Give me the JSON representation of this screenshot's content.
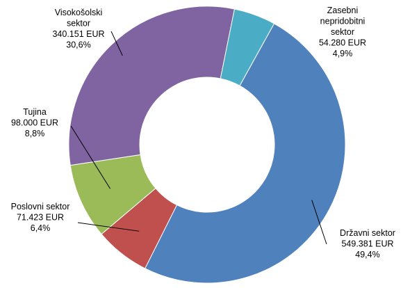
{
  "chart_data": {
    "type": "pie",
    "variant": "donut",
    "title": "",
    "legend": "none",
    "slices": [
      {
        "name_lines": [
          "Državni sektor"
        ],
        "value": "549.381 EUR",
        "percent": "49,4%",
        "amount": 549381,
        "share": 49.4,
        "color": "#4F81BD"
      },
      {
        "name_lines": [
          "Poslovni sektor"
        ],
        "value": "71.423 EUR",
        "percent": "6,4%",
        "amount": 71423,
        "share": 6.4,
        "color": "#C0504D"
      },
      {
        "name_lines": [
          "Tujina"
        ],
        "value": "98.000 EUR",
        "percent": "8,8%",
        "amount": 98000,
        "share": 8.8,
        "color": "#9BBB59"
      },
      {
        "name_lines": [
          "Visokošolski",
          "sektor"
        ],
        "value": "340.151 EUR",
        "percent": "30,6%",
        "amount": 340151,
        "share": 30.6,
        "color": "#8064A2"
      },
      {
        "name_lines": [
          "Zasebni",
          "nepridobitni",
          "sektor"
        ],
        "value": "54.280 EUR",
        "percent": "4,9%",
        "amount": 54280,
        "share": 4.9,
        "color": "#4BACC6"
      }
    ]
  }
}
